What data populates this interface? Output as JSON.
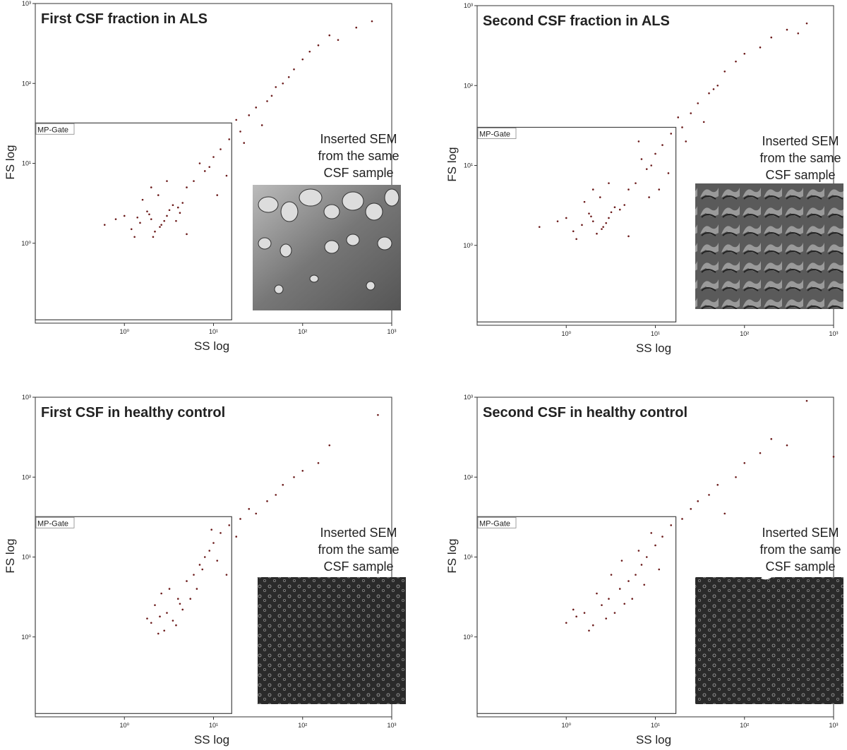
{
  "chart_data": [
    {
      "type": "scatter",
      "title": "First CSF fraction in ALS",
      "x_label": "SS log",
      "y_label": "FS log",
      "caption": [
        "Inserted SEM",
        "from the same",
        "CSF sample"
      ],
      "gate": {
        "label": "MP-Gate",
        "x": [
          0.1,
          16
        ],
        "y": [
          0.11,
          32
        ]
      },
      "log_scale": true,
      "color": "#6b1a1a",
      "xlim": [
        0.1,
        1000
      ],
      "ylim": [
        0.1,
        1000
      ],
      "xticks": [
        {
          "value": 1,
          "label": "10⁰"
        },
        {
          "value": 10,
          "label": "10¹"
        },
        {
          "value": 100,
          "label": "10²"
        },
        {
          "value": 1000,
          "label": "10³"
        }
      ],
      "yticks": [
        {
          "value": 1,
          "label": "10⁰"
        },
        {
          "value": 10,
          "label": "10¹"
        },
        {
          "value": 100,
          "label": "10²"
        },
        {
          "value": 1000,
          "label": "10³"
        }
      ],
      "x": [
        1.5,
        2,
        2.5,
        3,
        1.8,
        2.2,
        3.5,
        4,
        1.2,
        2.8,
        1.6,
        2.4,
        3.2,
        5,
        6,
        8,
        10,
        12,
        15,
        4.5,
        7,
        9,
        20,
        25,
        30,
        40,
        50,
        60,
        80,
        100,
        120,
        150,
        200,
        35,
        45,
        70,
        0.8,
        1,
        0.6,
        1.3,
        2,
        3,
        5,
        18,
        22,
        250,
        400,
        600,
        11,
        14,
        2.6,
        1.9,
        3.8,
        2.1,
        1.4,
        4.2
      ],
      "values": [
        1.8,
        2,
        1.6,
        2.2,
        2.5,
        1.4,
        3,
        2.8,
        1.5,
        1.9,
        3.5,
        4,
        2.6,
        5,
        6,
        8,
        12,
        15,
        20,
        3.2,
        10,
        9,
        25,
        40,
        50,
        60,
        90,
        100,
        150,
        200,
        250,
        300,
        400,
        30,
        70,
        120,
        2,
        2.2,
        1.7,
        1.2,
        5,
        6,
        1.3,
        35,
        18,
        350,
        500,
        600,
        4,
        7,
        1.7,
        2.3,
        1.9,
        1.2,
        2.1,
        2.4
      ]
    },
    {
      "type": "scatter",
      "title": "Second CSF fraction in ALS",
      "x_label": "SS log",
      "y_label": "FS log",
      "caption": [
        "Inserted SEM",
        "from the same",
        "CSF sample"
      ],
      "gate": {
        "label": "MP-Gate",
        "x": [
          0.1,
          17
        ],
        "y": [
          0.11,
          30
        ]
      },
      "log_scale": true,
      "color": "#6b1a1a",
      "xlim": [
        0.1,
        1000
      ],
      "ylim": [
        0.1,
        1000
      ],
      "xticks": [
        {
          "value": 1,
          "label": "10⁰"
        },
        {
          "value": 10,
          "label": "10¹"
        },
        {
          "value": 100,
          "label": "10²"
        },
        {
          "value": 1000,
          "label": "10³"
        }
      ],
      "yticks": [
        {
          "value": 1,
          "label": "10⁰"
        },
        {
          "value": 10,
          "label": "10¹"
        },
        {
          "value": 100,
          "label": "10²"
        },
        {
          "value": 1000,
          "label": "10³"
        }
      ],
      "x": [
        1.5,
        2,
        2.5,
        3,
        1.8,
        2.2,
        3.5,
        4,
        1.2,
        2.8,
        1.6,
        2.4,
        3.2,
        5,
        6,
        8,
        10,
        12,
        15,
        4.5,
        7,
        9,
        20,
        25,
        30,
        40,
        50,
        60,
        80,
        100,
        150,
        200,
        300,
        35,
        45,
        0.8,
        1,
        0.5,
        1.3,
        2,
        3,
        5,
        18,
        22,
        400,
        500,
        11,
        14,
        2.6,
        1.9,
        6.5,
        8.5
      ],
      "values": [
        1.8,
        2,
        1.6,
        2.2,
        2.5,
        1.4,
        3,
        2.8,
        1.5,
        1.9,
        3.5,
        4,
        2.6,
        5,
        6,
        9,
        14,
        18,
        25,
        3.2,
        12,
        10,
        30,
        45,
        60,
        80,
        100,
        150,
        200,
        250,
        300,
        400,
        500,
        35,
        90,
        2,
        2.2,
        1.7,
        1.2,
        5,
        6,
        1.3,
        40,
        20,
        450,
        600,
        5,
        8,
        1.7,
        2.3,
        20,
        4
      ]
    },
    {
      "type": "scatter",
      "title": "First CSF in healthy control",
      "x_label": "SS log",
      "y_label": "FS log",
      "caption": [
        "Inserted SEM",
        "from the same",
        "CSF sample"
      ],
      "gate": {
        "label": "MP-Gate",
        "x": [
          0.1,
          16
        ],
        "y": [
          0.11,
          32
        ]
      },
      "log_scale": true,
      "color": "#6b1a1a",
      "xlim": [
        0.1,
        1000
      ],
      "ylim": [
        0.1,
        1000
      ],
      "xticks": [
        {
          "value": 1,
          "label": "10⁰"
        },
        {
          "value": 10,
          "label": "10¹"
        },
        {
          "value": 100,
          "label": "10²"
        },
        {
          "value": 1000,
          "label": "10³"
        }
      ],
      "yticks": [
        {
          "value": 1,
          "label": "10⁰"
        },
        {
          "value": 10,
          "label": "10¹"
        },
        {
          "value": 100,
          "label": "10²"
        },
        {
          "value": 1000,
          "label": "10³"
        }
      ],
      "x": [
        2,
        2.5,
        3,
        3.5,
        2.2,
        2.8,
        4,
        4.5,
        3.2,
        2.6,
        5,
        6,
        7,
        8,
        9,
        10,
        12,
        5.5,
        6.5,
        7.5,
        15,
        20,
        25,
        30,
        40,
        50,
        60,
        80,
        100,
        150,
        200,
        700,
        3.8,
        4.2,
        2.4,
        1.8,
        11,
        14,
        18,
        9.5
      ],
      "values": [
        1.5,
        1.8,
        2,
        1.6,
        2.5,
        1.2,
        3,
        2.2,
        4,
        3.5,
        5,
        6,
        8,
        10,
        12,
        15,
        20,
        3,
        4,
        7,
        25,
        30,
        40,
        35,
        50,
        60,
        80,
        100,
        120,
        150,
        250,
        600,
        1.4,
        2.6,
        1.1,
        1.7,
        9,
        6,
        18,
        22
      ]
    },
    {
      "type": "scatter",
      "title": "Second CSF in healthy control",
      "x_label": "SS log",
      "y_label": "FS log",
      "caption": [
        "Inserted SEM",
        "from the same",
        "CSF sample"
      ],
      "gate": {
        "label": "MP-Gate",
        "x": [
          0.1,
          17
        ],
        "y": [
          0.11,
          32
        ]
      },
      "log_scale": true,
      "color": "#6b1a1a",
      "xlim": [
        0.1,
        1000
      ],
      "ylim": [
        0.1,
        1000
      ],
      "xticks": [
        {
          "value": 1,
          "label": "10⁰"
        },
        {
          "value": 10,
          "label": "10¹"
        },
        {
          "value": 100,
          "label": "10²"
        },
        {
          "value": 1000,
          "label": "10³"
        }
      ],
      "yticks": [
        {
          "value": 1,
          "label": "10⁰"
        },
        {
          "value": 10,
          "label": "10¹"
        },
        {
          "value": 100,
          "label": "10²"
        },
        {
          "value": 1000,
          "label": "10³"
        }
      ],
      "x": [
        1,
        1.3,
        1.6,
        2,
        2.5,
        3,
        3.5,
        4,
        4.5,
        5,
        6,
        7,
        8,
        10,
        12,
        1.8,
        2.2,
        2.8,
        3.2,
        5.5,
        6.5,
        9,
        15,
        20,
        25,
        30,
        40,
        50,
        60,
        80,
        100,
        150,
        200,
        300,
        500,
        1000,
        1.2,
        4.2,
        7.5,
        11
      ],
      "values": [
        1.5,
        1.8,
        2,
        1.4,
        2.5,
        3,
        2,
        4,
        2.6,
        5,
        6,
        8,
        10,
        14,
        18,
        1.2,
        3.5,
        1.7,
        6,
        3,
        12,
        20,
        25,
        30,
        40,
        50,
        60,
        80,
        35,
        100,
        150,
        200,
        300,
        250,
        900,
        180,
        2.2,
        9,
        4.5,
        7
      ]
    }
  ]
}
